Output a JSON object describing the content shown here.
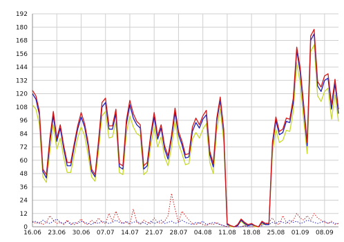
{
  "chart_data": {
    "type": "line",
    "title": "",
    "xlabel": "",
    "ylabel": "",
    "ylim": [
      0,
      192
    ],
    "yticks": [
      0,
      12,
      24,
      36,
      48,
      60,
      72,
      84,
      96,
      108,
      120,
      132,
      144,
      156,
      168,
      180,
      192
    ],
    "x_tick_labels": [
      "16.06",
      "23.06",
      "30.06",
      "07.07",
      "14.07",
      "21.07",
      "28.07",
      "04.08",
      "11.08",
      "18.08",
      "25.08",
      "01.09",
      "08.09",
      "15."
    ],
    "grid": true,
    "legend": "none",
    "series": [
      {
        "style": "solid",
        "color": "#d11818",
        "values": [
          123,
          118,
          104,
          52,
          47,
          80,
          104,
          80,
          92,
          73,
          58,
          58,
          75,
          91,
          103,
          93,
          76,
          52,
          47,
          78,
          112,
          116,
          91,
          91,
          106,
          57,
          55,
          96,
          114,
          102,
          95,
          92,
          55,
          58,
          83,
          103,
          82,
          92,
          73,
          64,
          83,
          107,
          86,
          77,
          65,
          66,
          90,
          98,
          92,
          100,
          105,
          68,
          57,
          98,
          117,
          88,
          3,
          1,
          0,
          2,
          7,
          4,
          2,
          3,
          1,
          0,
          5,
          3,
          3,
          76,
          99,
          86,
          88,
          98,
          97,
          116,
          162,
          143,
          110,
          76,
          172,
          178,
          131,
          126,
          136,
          138,
          110,
          133,
          106
        ]
      },
      {
        "style": "solid",
        "color": "#1c1cb8",
        "values": [
          120,
          115,
          101,
          50,
          44,
          76,
          100,
          77,
          89,
          70,
          55,
          55,
          72,
          88,
          99,
          90,
          73,
          50,
          45,
          75,
          108,
          112,
          88,
          88,
          102,
          54,
          52,
          92,
          110,
          98,
          92,
          89,
          52,
          55,
          80,
          99,
          79,
          89,
          70,
          61,
          80,
          103,
          83,
          74,
          62,
          63,
          86,
          94,
          89,
          97,
          101,
          65,
          54,
          95,
          114,
          85,
          2,
          1,
          0,
          1,
          6,
          3,
          1,
          2,
          1,
          0,
          4,
          2,
          2,
          73,
          96,
          83,
          85,
          95,
          94,
          112,
          159,
          139,
          106,
          73,
          168,
          174,
          127,
          122,
          132,
          134,
          106,
          129,
          102
        ]
      },
      {
        "style": "solid",
        "color": "#c8d828",
        "values": [
          110,
          106,
          92,
          45,
          40,
          68,
          92,
          70,
          80,
          62,
          49,
          49,
          65,
          80,
          90,
          82,
          65,
          45,
          41,
          68,
          100,
          104,
          80,
          81,
          95,
          49,
          47,
          84,
          100,
          90,
          84,
          82,
          47,
          50,
          73,
          90,
          72,
          81,
          63,
          55,
          72,
          95,
          75,
          66,
          56,
          57,
          79,
          85,
          80,
          88,
          93,
          58,
          48,
          87,
          106,
          77,
          2,
          0,
          0,
          1,
          5,
          2,
          1,
          2,
          0,
          0,
          3,
          2,
          2,
          66,
          88,
          76,
          78,
          87,
          86,
          104,
          148,
          129,
          96,
          66,
          158,
          164,
          118,
          113,
          122,
          125,
          97,
          119,
          95
        ]
      },
      {
        "style": "dotted",
        "color": "#d11818",
        "values": [
          5,
          3,
          4,
          2,
          4,
          10,
          6,
          3,
          4,
          2,
          6,
          3,
          2,
          4,
          7,
          3,
          2,
          6,
          3,
          8,
          4,
          3,
          12,
          5,
          14,
          6,
          3,
          4,
          2,
          16,
          4,
          2,
          6,
          4,
          3,
          8,
          4,
          3,
          5,
          10,
          30,
          16,
          4,
          14,
          10,
          6,
          3,
          2,
          4,
          2,
          1,
          3,
          2,
          4,
          2,
          1,
          0,
          0,
          0,
          0,
          0,
          1,
          0,
          0,
          0,
          0,
          2,
          3,
          4,
          8,
          3,
          2,
          10,
          4,
          3,
          6,
          12,
          8,
          6,
          10,
          6,
          12,
          8,
          6,
          4,
          3,
          5,
          2,
          3
        ]
      },
      {
        "style": "dotted",
        "color": "#1c1cb8",
        "values": [
          4,
          5,
          3,
          6,
          4,
          3,
          5,
          7,
          4,
          3,
          5,
          2,
          4,
          3,
          5,
          4,
          3,
          2,
          4,
          3,
          5,
          4,
          3,
          4,
          6,
          4,
          3,
          5,
          3,
          4,
          5,
          3,
          4,
          2,
          5,
          3,
          4,
          6,
          3,
          4,
          5,
          3,
          4,
          6,
          4,
          3,
          2,
          4,
          3,
          5,
          2,
          3,
          4,
          3,
          2,
          1,
          0,
          0,
          0,
          0,
          0,
          1,
          0,
          0,
          0,
          0,
          1,
          3,
          2,
          4,
          3,
          5,
          4,
          3,
          6,
          4,
          5,
          3,
          4,
          6,
          5,
          4,
          3,
          4,
          5,
          3,
          4,
          3,
          3
        ]
      }
    ]
  }
}
